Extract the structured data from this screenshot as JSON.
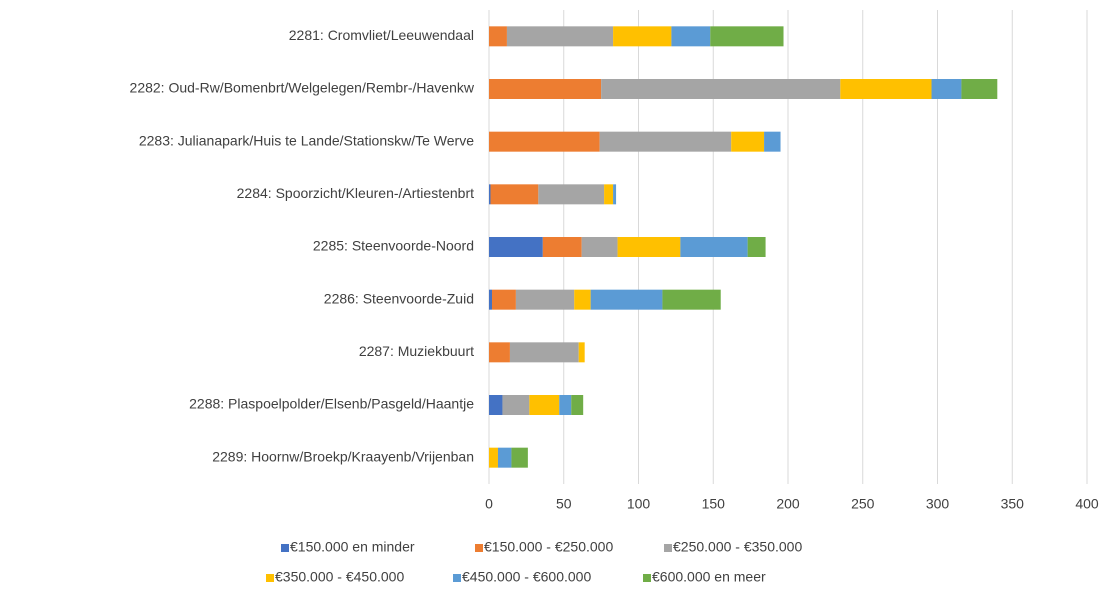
{
  "chart_data": {
    "type": "stacked-bar",
    "orientation": "horizontal",
    "categories": [
      "2281: Cromvliet/Leeuwendaal",
      "2282: Oud-Rw/Bomenbrt/Welgelegen/Rembr-/Havenkw",
      "2283: Julianapark/Huis te Lande/Stationskw/Te Werve",
      "2284: Spoorzicht/Kleuren-/Artiestenbrt",
      "2285: Steenvoorde-Noord",
      "2286: Steenvoorde-Zuid",
      "2287: Muziekbuurt",
      "2288: Plaspoelpolder/Elsenb/Pasgeld/Haantje",
      "2289: Hoornw/Broekp/Kraayenb/Vrijenban"
    ],
    "series": [
      {
        "name": "€150.000 en minder",
        "color": "#4472c4",
        "values": [
          0,
          0,
          0,
          1,
          36,
          2,
          0,
          9,
          0
        ]
      },
      {
        "name": "€150.000 - €250.000",
        "color": "#ed7d31",
        "values": [
          12,
          75,
          74,
          32,
          26,
          16,
          14,
          0,
          0
        ]
      },
      {
        "name": "€250.000 - €350.000",
        "color": "#a5a5a5",
        "values": [
          71,
          160,
          88,
          44,
          24,
          39,
          46,
          18,
          0
        ]
      },
      {
        "name": "€350.000 - €450.000",
        "color": "#ffc000",
        "values": [
          39,
          61,
          22,
          6,
          42,
          11,
          4,
          20,
          6
        ]
      },
      {
        "name": "€450.000 - €600.000",
        "color": "#5b9bd5",
        "values": [
          26,
          20,
          11,
          2,
          45,
          48,
          0,
          8,
          9
        ]
      },
      {
        "name": "€600.000 en meer",
        "color": "#70ad47",
        "values": [
          49,
          24,
          0,
          0,
          12,
          39,
          0,
          8,
          11
        ]
      }
    ],
    "xlim": [
      0,
      400
    ],
    "xticks": [
      0,
      50,
      100,
      150,
      200,
      250,
      300,
      350,
      400
    ],
    "grid": true,
    "legend": "bottom"
  }
}
